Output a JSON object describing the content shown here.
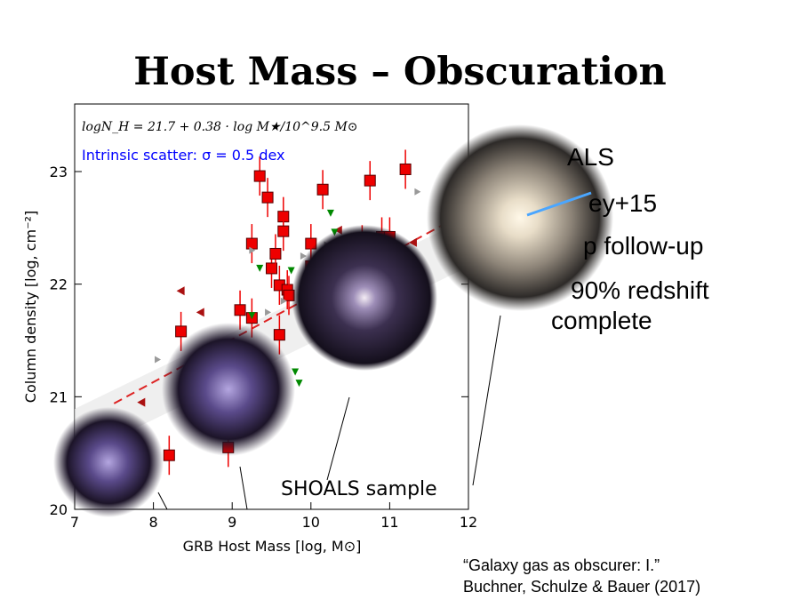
{
  "slide": {
    "title": "Host Mass – Obscuration",
    "bullets": [
      "ALS",
      "ey+15",
      "p follow-up",
      "90% redshift",
      "complete"
    ],
    "citation_line1": "“Galaxy gas as obscurer: I.”",
    "citation_line2": "Buchner, Schulze & Bauer (2017)"
  },
  "colors": {
    "red_marker": "#ee0000",
    "green_marker": "#008800",
    "grey_marker": "#999999",
    "blue_text": "#0000ff",
    "dark_red_marker": "#aa1111"
  },
  "chart_data": {
    "type": "scatter",
    "xlabel": "GRB Host Mass [log, M⊙]",
    "ylabel": "Column density [log, cm⁻²]",
    "xlim": [
      7,
      12
    ],
    "ylim": [
      20,
      23.6
    ],
    "xticks": [
      "7",
      "8",
      "9",
      "10",
      "11",
      "12"
    ],
    "yticks": [
      "20",
      "21",
      "22",
      "23"
    ],
    "formula": "logN_H = 21.7 + 0.38 · log M★/10^9.5 M⊙",
    "scatter_note": "Intrinsic scatter: σ = 0.5 dex",
    "annotation": "SHOALS sample",
    "fit_line": {
      "intercept_at_9_5": 21.7,
      "slope": 0.38
    },
    "series": [
      {
        "marker": "square",
        "color": "#ee0000",
        "points": [
          [
            8.2,
            20.48
          ],
          [
            8.35,
            21.58
          ],
          [
            8.95,
            20.55
          ],
          [
            9.1,
            21.77
          ],
          [
            9.25,
            22.36
          ],
          [
            9.25,
            21.7
          ],
          [
            9.35,
            22.96
          ],
          [
            9.45,
            22.77
          ],
          [
            9.5,
            22.14
          ],
          [
            9.55,
            22.27
          ],
          [
            9.6,
            21.99
          ],
          [
            9.6,
            21.55
          ],
          [
            9.65,
            22.6
          ],
          [
            9.65,
            22.47
          ],
          [
            9.7,
            21.95
          ],
          [
            9.72,
            21.9
          ],
          [
            10.0,
            22.36
          ],
          [
            10.0,
            22.16
          ],
          [
            10.15,
            22.84
          ],
          [
            10.65,
            22.35
          ],
          [
            10.75,
            22.92
          ],
          [
            10.9,
            22.42
          ],
          [
            11.0,
            22.42
          ],
          [
            11.2,
            23.02
          ]
        ]
      },
      {
        "marker": "triangle-left",
        "color": "#aa1111",
        "points": [
          [
            7.85,
            20.95
          ],
          [
            8.35,
            21.94
          ],
          [
            8.6,
            21.75
          ],
          [
            10.35,
            22.48
          ],
          [
            11.3,
            22.37
          ]
        ]
      },
      {
        "marker": "triangle-down",
        "color": "#008800",
        "points": [
          [
            9.25,
            21.72
          ],
          [
            9.35,
            22.14
          ],
          [
            9.75,
            22.12
          ],
          [
            9.8,
            21.22
          ],
          [
            9.85,
            21.12
          ],
          [
            10.25,
            22.63
          ],
          [
            10.3,
            22.46
          ]
        ]
      },
      {
        "marker": "triangle-right",
        "color": "#999999",
        "points": [
          [
            8.05,
            21.33
          ],
          [
            9.25,
            22.3
          ],
          [
            9.45,
            21.75
          ],
          [
            9.65,
            21.85
          ],
          [
            9.9,
            22.25
          ],
          [
            10.2,
            22.35
          ],
          [
            11.35,
            22.82
          ]
        ]
      }
    ],
    "grid": false,
    "legend": "none"
  }
}
